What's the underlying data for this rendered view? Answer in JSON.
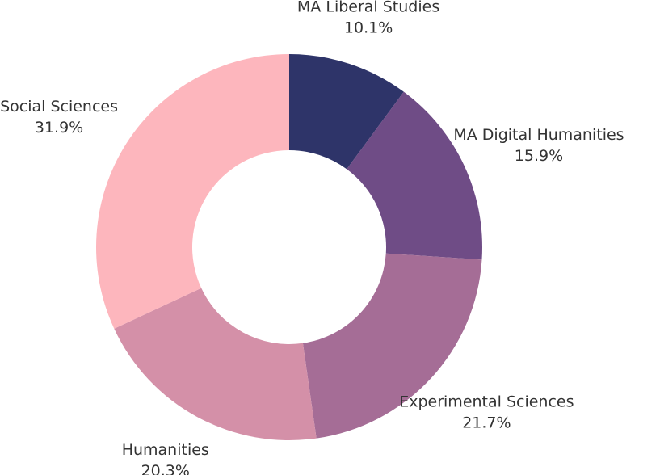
{
  "chart_data": {
    "type": "donut",
    "categories": [
      "MA Liberal Studies",
      "MA Digital Humanities",
      "Experimental Sciences",
      "Humanities",
      "Social Sciences"
    ],
    "values": [
      10.1,
      15.9,
      21.7,
      20.3,
      31.9
    ],
    "value_labels": [
      "10.1%",
      "15.9%",
      "21.7%",
      "20.3%",
      "31.9%"
    ],
    "colors": [
      "#2e3469",
      "#6f4c86",
      "#a56d96",
      "#d490a8",
      "#fdb6bd"
    ]
  }
}
